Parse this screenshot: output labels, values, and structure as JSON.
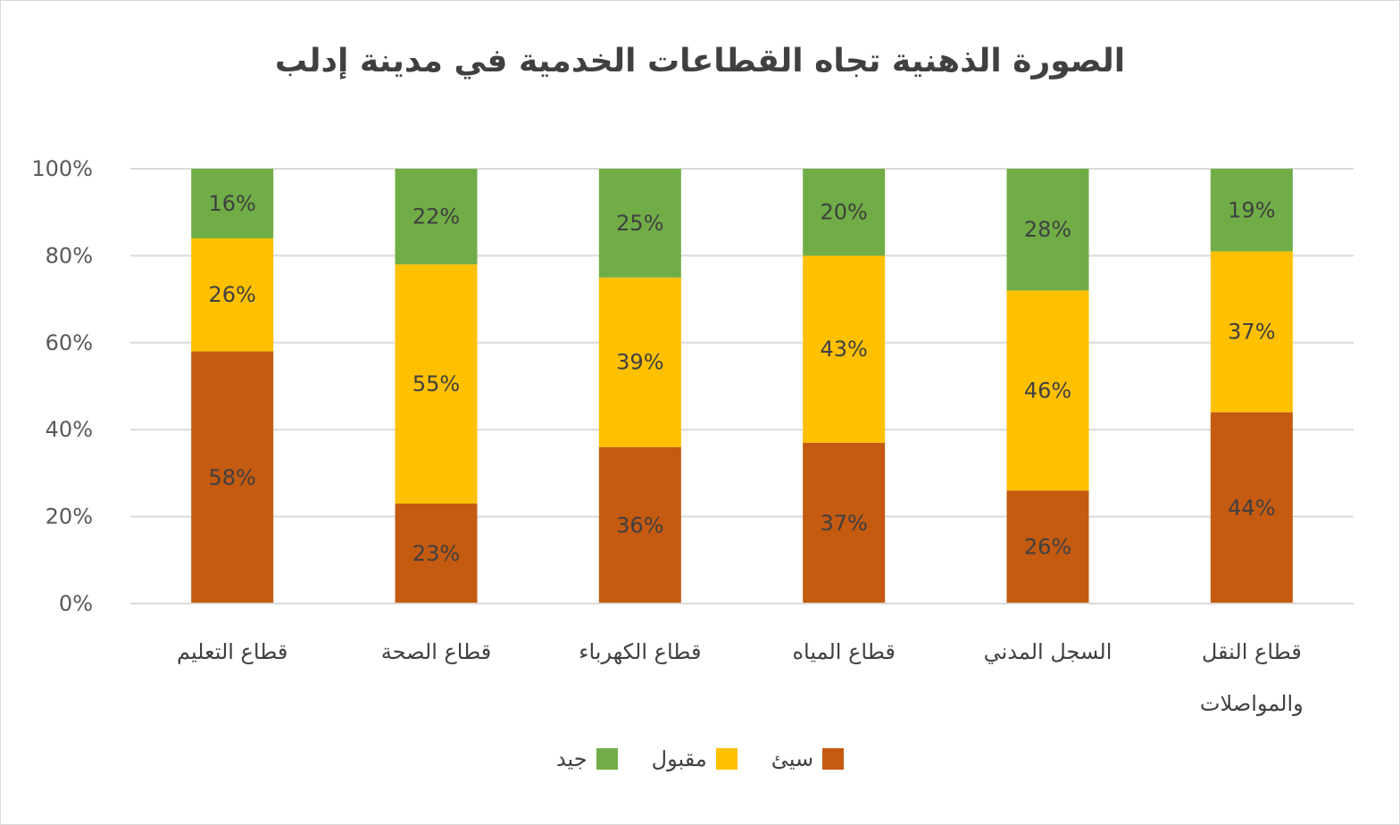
{
  "chart_data": {
    "type": "bar",
    "stacked": true,
    "title": "الصورة الذهنية تجاه القطاعات الخدمية في مدينة إدلب",
    "categories": [
      [
        "قطاع التعليم"
      ],
      [
        "قطاع الصحة"
      ],
      [
        "قطاع الكهرباء"
      ],
      [
        "قطاع المياه"
      ],
      [
        "السجل المدني"
      ],
      [
        "قطاع النقل",
        "والمواصلات"
      ]
    ],
    "series": [
      {
        "name": "سيئ",
        "color": "#C55A11",
        "values": [
          58,
          23,
          36,
          37,
          26,
          44
        ],
        "labels": [
          "58%",
          "23%",
          "36%",
          "37%",
          "26%",
          "44%"
        ]
      },
      {
        "name": "مقبول",
        "color": "#FFC000",
        "values": [
          26,
          55,
          39,
          43,
          46,
          37
        ],
        "labels": [
          "26%",
          "55%",
          "39%",
          "43%",
          "46%",
          "37%"
        ]
      },
      {
        "name": "جيد",
        "color": "#70AD47",
        "values": [
          16,
          22,
          25,
          20,
          28,
          19
        ],
        "labels": [
          "16%",
          "22%",
          "25%",
          "20%",
          "28%",
          "19%"
        ]
      }
    ],
    "y_ticks": [
      "0%",
      "20%",
      "40%",
      "60%",
      "80%",
      "100%"
    ],
    "ylim": [
      0,
      100
    ],
    "grid": true,
    "legend_position": "bottom",
    "legend_order": [
      "سيئ",
      "مقبول",
      "جيد"
    ]
  }
}
